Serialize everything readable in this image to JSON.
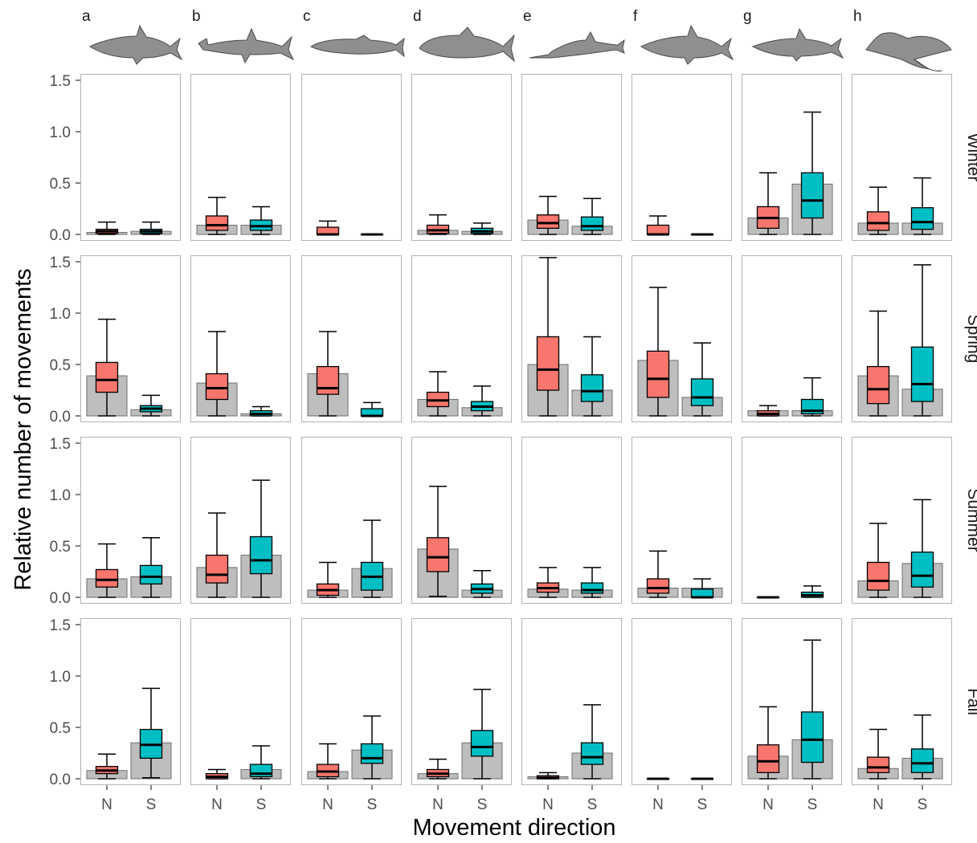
{
  "chart_data": {
    "type": "bar",
    "layout": "faceted grid: 4 season rows × 8 species columns; each panel has a grey bar (relative movements) with an overlaid boxplot per direction",
    "xlabel": "Movement direction",
    "ylabel": "Relative number of movements",
    "ylim": [
      -0.05,
      1.6
    ],
    "yticks": [
      "0.0",
      "0.5",
      "1.0",
      "1.5"
    ],
    "ytick_values": [
      0,
      0.5,
      1.0,
      1.5
    ],
    "categories": [
      "N",
      "S"
    ],
    "columns": [
      "a",
      "b",
      "c",
      "d",
      "e",
      "f",
      "g",
      "h"
    ],
    "column_silhouettes": [
      "shark-icon",
      "hammerhead-shark-icon",
      "cobia-fish-icon",
      "tarpon-fish-icon",
      "sawfish-icon",
      "shark-icon",
      "blacktip-shark-icon",
      "eagle-ray-icon"
    ],
    "rows": [
      "Winter",
      "Spring",
      "Summer",
      "Fall"
    ],
    "colors": {
      "N": "#f8766d",
      "S": "#00bfc4",
      "bar": "#bebebe",
      "bar_edge": "#6e6e6e",
      "panel_border": "#b3b3b3",
      "median": "#000000"
    },
    "grid": false,
    "legend": "none",
    "panels": [
      [
        {
          "N": {
            "bar": 0.02,
            "min": 0.0,
            "q1": 0.01,
            "med": 0.03,
            "q3": 0.05,
            "max": 0.12
          },
          "S": {
            "bar": 0.03,
            "min": 0.0,
            "q1": 0.01,
            "med": 0.03,
            "q3": 0.05,
            "max": 0.12
          }
        },
        {
          "N": {
            "bar": 0.09,
            "min": 0.0,
            "q1": 0.04,
            "med": 0.09,
            "q3": 0.18,
            "max": 0.36
          },
          "S": {
            "bar": 0.09,
            "min": 0.0,
            "q1": 0.04,
            "med": 0.08,
            "q3": 0.14,
            "max": 0.27
          }
        },
        {
          "N": {
            "bar": 0.0,
            "min": 0.0,
            "q1": 0.0,
            "med": 0.0,
            "q3": 0.07,
            "max": 0.13
          },
          "S": {
            "bar": 0.0,
            "min": 0.0,
            "q1": 0.0,
            "med": 0.0,
            "q3": 0.0,
            "max": 0.0
          }
        },
        {
          "N": {
            "bar": 0.04,
            "min": 0.0,
            "q1": 0.01,
            "med": 0.04,
            "q3": 0.09,
            "max": 0.19
          },
          "S": {
            "bar": 0.03,
            "min": 0.0,
            "q1": 0.01,
            "med": 0.03,
            "q3": 0.06,
            "max": 0.11
          }
        },
        {
          "N": {
            "bar": 0.14,
            "min": 0.0,
            "q1": 0.06,
            "med": 0.11,
            "q3": 0.19,
            "max": 0.37
          },
          "S": {
            "bar": 0.08,
            "min": 0.0,
            "q1": 0.04,
            "med": 0.08,
            "q3": 0.17,
            "max": 0.35
          }
        },
        {
          "N": {
            "bar": 0.0,
            "min": 0.0,
            "q1": 0.0,
            "med": 0.0,
            "q3": 0.09,
            "max": 0.18
          },
          "S": {
            "bar": 0.0,
            "min": 0.0,
            "q1": 0.0,
            "med": 0.0,
            "q3": 0.0,
            "max": 0.0
          }
        },
        {
          "N": {
            "bar": 0.16,
            "min": 0.0,
            "q1": 0.06,
            "med": 0.16,
            "q3": 0.27,
            "max": 0.6
          },
          "S": {
            "bar": 0.49,
            "min": 0.0,
            "q1": 0.16,
            "med": 0.33,
            "q3": 0.6,
            "max": 1.19
          }
        },
        {
          "N": {
            "bar": 0.11,
            "min": 0.0,
            "q1": 0.04,
            "med": 0.11,
            "q3": 0.22,
            "max": 0.46
          },
          "S": {
            "bar": 0.11,
            "min": 0.0,
            "q1": 0.05,
            "med": 0.12,
            "q3": 0.26,
            "max": 0.55
          }
        }
      ],
      [
        {
          "N": {
            "bar": 0.39,
            "min": 0.0,
            "q1": 0.23,
            "med": 0.35,
            "q3": 0.52,
            "max": 0.94
          },
          "S": {
            "bar": 0.06,
            "min": 0.0,
            "q1": 0.04,
            "med": 0.07,
            "q3": 0.1,
            "max": 0.2
          }
        },
        {
          "N": {
            "bar": 0.32,
            "min": 0.0,
            "q1": 0.16,
            "med": 0.27,
            "q3": 0.41,
            "max": 0.82
          },
          "S": {
            "bar": 0.02,
            "min": 0.0,
            "q1": 0.0,
            "med": 0.02,
            "q3": 0.05,
            "max": 0.09
          }
        },
        {
          "N": {
            "bar": 0.41,
            "min": 0.0,
            "q1": 0.21,
            "med": 0.27,
            "q3": 0.48,
            "max": 0.82
          },
          "S": {
            "bar": 0.0,
            "min": 0.0,
            "q1": 0.0,
            "med": 0.0,
            "q3": 0.07,
            "max": 0.13
          }
        },
        {
          "N": {
            "bar": 0.16,
            "min": 0.0,
            "q1": 0.09,
            "med": 0.15,
            "q3": 0.23,
            "max": 0.43
          },
          "S": {
            "bar": 0.08,
            "min": 0.0,
            "q1": 0.05,
            "med": 0.09,
            "q3": 0.14,
            "max": 0.29
          }
        },
        {
          "N": {
            "bar": 0.5,
            "min": 0.0,
            "q1": 0.25,
            "med": 0.45,
            "q3": 0.77,
            "max": 1.54
          },
          "S": {
            "bar": 0.25,
            "min": 0.0,
            "q1": 0.14,
            "med": 0.24,
            "q3": 0.4,
            "max": 0.77
          }
        },
        {
          "N": {
            "bar": 0.54,
            "min": 0.0,
            "q1": 0.18,
            "med": 0.36,
            "q3": 0.63,
            "max": 1.25
          },
          "S": {
            "bar": 0.18,
            "min": 0.0,
            "q1": 0.1,
            "med": 0.18,
            "q3": 0.36,
            "max": 0.71
          }
        },
        {
          "N": {
            "bar": 0.05,
            "min": 0.0,
            "q1": 0.0,
            "med": 0.02,
            "q3": 0.05,
            "max": 0.1
          },
          "S": {
            "bar": 0.05,
            "min": 0.0,
            "q1": 0.02,
            "med": 0.05,
            "q3": 0.16,
            "max": 0.37
          }
        },
        {
          "N": {
            "bar": 0.39,
            "min": 0.0,
            "q1": 0.12,
            "med": 0.26,
            "q3": 0.48,
            "max": 1.02
          },
          "S": {
            "bar": 0.26,
            "min": 0.0,
            "q1": 0.14,
            "med": 0.31,
            "q3": 0.67,
            "max": 1.47
          }
        }
      ],
      [
        {
          "N": {
            "bar": 0.18,
            "min": 0.0,
            "q1": 0.1,
            "med": 0.17,
            "q3": 0.27,
            "max": 0.52
          },
          "S": {
            "bar": 0.2,
            "min": 0.0,
            "q1": 0.13,
            "med": 0.2,
            "q3": 0.31,
            "max": 0.58
          }
        },
        {
          "N": {
            "bar": 0.29,
            "min": 0.0,
            "q1": 0.14,
            "med": 0.22,
            "q3": 0.41,
            "max": 0.82
          },
          "S": {
            "bar": 0.41,
            "min": 0.0,
            "q1": 0.23,
            "med": 0.36,
            "q3": 0.59,
            "max": 1.14
          }
        },
        {
          "N": {
            "bar": 0.07,
            "min": 0.0,
            "q1": 0.02,
            "med": 0.07,
            "q3": 0.13,
            "max": 0.34
          },
          "S": {
            "bar": 0.28,
            "min": 0.0,
            "q1": 0.07,
            "med": 0.2,
            "q3": 0.34,
            "max": 0.75
          }
        },
        {
          "N": {
            "bar": 0.47,
            "min": 0.01,
            "q1": 0.25,
            "med": 0.39,
            "q3": 0.58,
            "max": 1.08
          },
          "S": {
            "bar": 0.07,
            "min": 0.0,
            "q1": 0.04,
            "med": 0.08,
            "q3": 0.13,
            "max": 0.26
          }
        },
        {
          "N": {
            "bar": 0.08,
            "min": 0.0,
            "q1": 0.05,
            "med": 0.09,
            "q3": 0.14,
            "max": 0.29
          },
          "S": {
            "bar": 0.07,
            "min": 0.0,
            "q1": 0.04,
            "med": 0.07,
            "q3": 0.14,
            "max": 0.29
          }
        },
        {
          "N": {
            "bar": 0.09,
            "min": 0.0,
            "q1": 0.04,
            "med": 0.09,
            "q3": 0.18,
            "max": 0.45
          },
          "S": {
            "bar": 0.09,
            "min": 0.0,
            "q1": 0.0,
            "med": 0.0,
            "q3": 0.08,
            "max": 0.18
          }
        },
        {
          "N": {
            "bar": 0.0,
            "min": 0.0,
            "q1": 0.0,
            "med": 0.0,
            "q3": 0.0,
            "max": 0.0
          },
          "S": {
            "bar": 0.0,
            "min": 0.0,
            "q1": 0.0,
            "med": 0.02,
            "q3": 0.05,
            "max": 0.11
          }
        },
        {
          "N": {
            "bar": 0.16,
            "min": 0.0,
            "q1": 0.07,
            "med": 0.16,
            "q3": 0.34,
            "max": 0.72
          },
          "S": {
            "bar": 0.33,
            "min": 0.0,
            "q1": 0.1,
            "med": 0.21,
            "q3": 0.44,
            "max": 0.95
          }
        }
      ],
      [
        {
          "N": {
            "bar": 0.08,
            "min": 0.0,
            "q1": 0.05,
            "med": 0.08,
            "q3": 0.12,
            "max": 0.24
          },
          "S": {
            "bar": 0.35,
            "min": 0.01,
            "q1": 0.2,
            "med": 0.33,
            "q3": 0.48,
            "max": 0.88
          }
        },
        {
          "N": {
            "bar": 0.0,
            "min": 0.0,
            "q1": 0.0,
            "med": 0.02,
            "q3": 0.05,
            "max": 0.09
          },
          "S": {
            "bar": 0.09,
            "min": 0.0,
            "q1": 0.02,
            "med": 0.05,
            "q3": 0.14,
            "max": 0.32
          }
        },
        {
          "N": {
            "bar": 0.07,
            "min": 0.0,
            "q1": 0.02,
            "med": 0.07,
            "q3": 0.14,
            "max": 0.34
          },
          "S": {
            "bar": 0.28,
            "min": 0.0,
            "q1": 0.15,
            "med": 0.2,
            "q3": 0.34,
            "max": 0.61
          }
        },
        {
          "N": {
            "bar": 0.05,
            "min": 0.0,
            "q1": 0.02,
            "med": 0.05,
            "q3": 0.09,
            "max": 0.19
          },
          "S": {
            "bar": 0.35,
            "min": 0.0,
            "q1": 0.22,
            "med": 0.31,
            "q3": 0.47,
            "max": 0.87
          }
        },
        {
          "N": {
            "bar": 0.02,
            "min": 0.0,
            "q1": 0.0,
            "med": 0.01,
            "q3": 0.03,
            "max": 0.06
          },
          "S": {
            "bar": 0.25,
            "min": 0.0,
            "q1": 0.14,
            "med": 0.21,
            "q3": 0.35,
            "max": 0.72
          }
        },
        {
          "N": {
            "bar": 0.0,
            "min": 0.0,
            "q1": 0.0,
            "med": 0.0,
            "q3": 0.0,
            "max": 0.0
          },
          "S": {
            "bar": 0.0,
            "min": 0.0,
            "q1": 0.0,
            "med": 0.0,
            "q3": 0.0,
            "max": 0.0
          }
        },
        {
          "N": {
            "bar": 0.22,
            "min": 0.0,
            "q1": 0.06,
            "med": 0.17,
            "q3": 0.33,
            "max": 0.7
          },
          "S": {
            "bar": 0.38,
            "min": 0.0,
            "q1": 0.16,
            "med": 0.38,
            "q3": 0.65,
            "max": 1.35
          }
        },
        {
          "N": {
            "bar": 0.1,
            "min": 0.0,
            "q1": 0.06,
            "med": 0.11,
            "q3": 0.21,
            "max": 0.48
          },
          "S": {
            "bar": 0.2,
            "min": 0.0,
            "q1": 0.06,
            "med": 0.15,
            "q3": 0.29,
            "max": 0.62
          }
        }
      ]
    ]
  }
}
